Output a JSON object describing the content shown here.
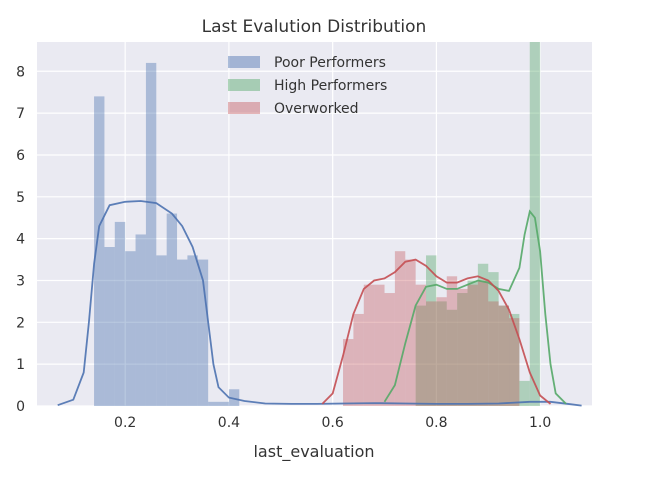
{
  "chart_data": {
    "type": "histogram",
    "title": "Last Evalution Distribution",
    "xlabel": "last_evaluation",
    "ylabel": "",
    "xlim": [
      0.03,
      1.1
    ],
    "ylim": [
      0,
      8.7
    ],
    "x_ticks": [
      0.2,
      0.4,
      0.6,
      0.8,
      1.0
    ],
    "x_tick_labels": [
      "0.2",
      "0.4",
      "0.6",
      "0.8",
      "1.0"
    ],
    "y_ticks": [
      0,
      1,
      2,
      3,
      4,
      5,
      6,
      7,
      8
    ],
    "y_tick_labels": [
      "0",
      "1",
      "2",
      "3",
      "4",
      "5",
      "6",
      "7",
      "8"
    ],
    "grid": true,
    "background": "#EAEAF2",
    "legend_position": "top-center",
    "series": [
      {
        "name": "Poor Performers",
        "color": "#4C72B0",
        "bar_opacity": 0.4,
        "bin_width": 0.02,
        "bins": [
          [
            0.13,
            0.0
          ],
          [
            0.15,
            7.4
          ],
          [
            0.17,
            3.8
          ],
          [
            0.19,
            4.4
          ],
          [
            0.21,
            3.7
          ],
          [
            0.23,
            4.1
          ],
          [
            0.25,
            8.2
          ],
          [
            0.27,
            3.6
          ],
          [
            0.29,
            4.6
          ],
          [
            0.31,
            3.5
          ],
          [
            0.33,
            3.6
          ],
          [
            0.35,
            3.5
          ],
          [
            0.37,
            0.1
          ],
          [
            0.39,
            0.1
          ],
          [
            0.41,
            0.4
          ]
        ],
        "kde": [
          [
            0.07,
            0.02
          ],
          [
            0.1,
            0.15
          ],
          [
            0.12,
            0.8
          ],
          [
            0.13,
            2.0
          ],
          [
            0.14,
            3.4
          ],
          [
            0.15,
            4.3
          ],
          [
            0.17,
            4.8
          ],
          [
            0.2,
            4.88
          ],
          [
            0.23,
            4.9
          ],
          [
            0.26,
            4.85
          ],
          [
            0.29,
            4.6
          ],
          [
            0.31,
            4.3
          ],
          [
            0.33,
            3.8
          ],
          [
            0.35,
            3.0
          ],
          [
            0.36,
            2.0
          ],
          [
            0.37,
            1.0
          ],
          [
            0.38,
            0.45
          ],
          [
            0.4,
            0.2
          ],
          [
            0.43,
            0.12
          ],
          [
            0.47,
            0.06
          ],
          [
            0.52,
            0.05
          ],
          [
            0.57,
            0.05
          ],
          [
            0.62,
            0.06
          ],
          [
            0.68,
            0.07
          ],
          [
            0.74,
            0.06
          ],
          [
            0.8,
            0.05
          ],
          [
            0.86,
            0.05
          ],
          [
            0.92,
            0.06
          ],
          [
            0.98,
            0.1
          ],
          [
            1.02,
            0.1
          ],
          [
            1.06,
            0.04
          ],
          [
            1.08,
            0.01
          ]
        ]
      },
      {
        "name": "High Performers",
        "color": "#55A868",
        "bar_opacity": 0.4,
        "bin_width": 0.02,
        "bins": [
          [
            0.77,
            2.4
          ],
          [
            0.79,
            3.6
          ],
          [
            0.81,
            2.5
          ],
          [
            0.83,
            2.3
          ],
          [
            0.85,
            2.7
          ],
          [
            0.87,
            3.0
          ],
          [
            0.89,
            3.4
          ],
          [
            0.91,
            3.2
          ],
          [
            0.93,
            2.4
          ],
          [
            0.95,
            2.2
          ],
          [
            0.97,
            0.6
          ],
          [
            0.99,
            8.7
          ]
        ],
        "kde": [
          [
            0.7,
            0.1
          ],
          [
            0.72,
            0.5
          ],
          [
            0.74,
            1.5
          ],
          [
            0.76,
            2.4
          ],
          [
            0.78,
            2.85
          ],
          [
            0.8,
            2.9
          ],
          [
            0.82,
            2.8
          ],
          [
            0.84,
            2.8
          ],
          [
            0.86,
            2.9
          ],
          [
            0.88,
            3.0
          ],
          [
            0.9,
            2.95
          ],
          [
            0.92,
            2.8
          ],
          [
            0.94,
            2.75
          ],
          [
            0.96,
            3.3
          ],
          [
            0.97,
            4.1
          ],
          [
            0.98,
            4.65
          ],
          [
            0.99,
            4.5
          ],
          [
            1.0,
            3.7
          ],
          [
            1.01,
            2.2
          ],
          [
            1.02,
            1.0
          ],
          [
            1.03,
            0.3
          ],
          [
            1.05,
            0.05
          ]
        ]
      },
      {
        "name": "Overworked",
        "color": "#C44E52",
        "bar_opacity": 0.35,
        "bin_width": 0.02,
        "bins": [
          [
            0.61,
            0.0
          ],
          [
            0.63,
            1.6
          ],
          [
            0.65,
            2.2
          ],
          [
            0.67,
            2.9
          ],
          [
            0.69,
            2.9
          ],
          [
            0.71,
            2.7
          ],
          [
            0.73,
            3.7
          ],
          [
            0.75,
            3.5
          ],
          [
            0.77,
            2.9
          ],
          [
            0.79,
            2.5
          ],
          [
            0.81,
            2.6
          ],
          [
            0.83,
            3.1
          ],
          [
            0.85,
            2.8
          ],
          [
            0.87,
            2.9
          ],
          [
            0.89,
            3.0
          ],
          [
            0.91,
            2.5
          ],
          [
            0.93,
            2.4
          ],
          [
            0.95,
            2.1
          ]
        ],
        "kde": [
          [
            0.58,
            0.05
          ],
          [
            0.6,
            0.3
          ],
          [
            0.62,
            1.2
          ],
          [
            0.64,
            2.2
          ],
          [
            0.66,
            2.8
          ],
          [
            0.68,
            3.0
          ],
          [
            0.7,
            3.05
          ],
          [
            0.72,
            3.2
          ],
          [
            0.74,
            3.45
          ],
          [
            0.76,
            3.5
          ],
          [
            0.78,
            3.35
          ],
          [
            0.8,
            3.1
          ],
          [
            0.82,
            2.95
          ],
          [
            0.84,
            2.95
          ],
          [
            0.86,
            3.05
          ],
          [
            0.88,
            3.1
          ],
          [
            0.9,
            3.0
          ],
          [
            0.92,
            2.75
          ],
          [
            0.94,
            2.3
          ],
          [
            0.96,
            1.6
          ],
          [
            0.98,
            0.8
          ],
          [
            1.0,
            0.25
          ],
          [
            1.02,
            0.05
          ]
        ]
      }
    ]
  }
}
